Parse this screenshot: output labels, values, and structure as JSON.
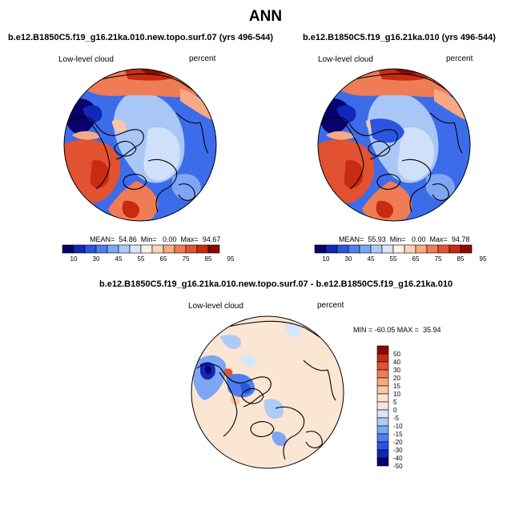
{
  "figure": {
    "title": "ANN"
  },
  "panels": [
    {
      "case_title": "b.e12.B1850C5.f19_g16.21ka.010.new.topo.surf.07 (yrs 496-544)",
      "variable_label": "Low-level cloud",
      "units_label": "percent",
      "stats_text": "MEAN=  54.86  Min=   0.00  Max=  94.67",
      "colorbar_ticks": [
        "10",
        "30",
        "45",
        "55",
        "65",
        "75",
        "85",
        "95"
      ]
    },
    {
      "case_title": "b.e12.B1850C5.f19_g16.21ka.010 (yrs 496-544)",
      "variable_label": "Low-level cloud",
      "units_label": "percent",
      "stats_text": "MEAN=  55.93  Min=   0.00  Max=  94.78",
      "colorbar_ticks": [
        "10",
        "30",
        "45",
        "55",
        "65",
        "75",
        "85",
        "95"
      ]
    },
    {
      "case_title": "b.e12.B1850C5.f19_g16.21ka.010.new.topo.surf.07 - b.e12.B1850C5.f19_g16.21ka.010",
      "variable_label": "Low-level cloud",
      "units_label": "percent",
      "stats_text": "MIN = -60.05 MAX =  35.94",
      "colorbar_ticks": [
        "50",
        "40",
        "30",
        "20",
        "15",
        "10",
        "5",
        "0",
        "-5",
        "-10",
        "-15",
        "-20",
        "-30",
        "-40",
        "-50"
      ]
    }
  ],
  "colors": {
    "abs_scale": [
      "#08006e",
      "#1027b8",
      "#2a55e0",
      "#4c7ef0",
      "#7ea6f4",
      "#aecbf6",
      "#d9e6fa",
      "#fbf1e6",
      "#fbd2b8",
      "#f6a983",
      "#ef7c55",
      "#e25230",
      "#c92a12",
      "#8b0a00"
    ],
    "diff_scale": [
      "#8b0a00",
      "#c92a12",
      "#e25230",
      "#ef7c55",
      "#f6a983",
      "#f9c6a6",
      "#fde2cf",
      "#fbe6d4",
      "#d6e6fb",
      "#aecbf6",
      "#7ea6f4",
      "#4c7ef0",
      "#2a55e0",
      "#1027b8",
      "#08006e"
    ]
  },
  "chart_data": [
    {
      "type": "heatmap",
      "projection": "north-polar-stereographic",
      "title": "b.e12.B1850C5.f19_g16.21ka.010.new.topo.surf.07 (yrs 496-544)",
      "variable": "Low-level cloud",
      "units": "percent",
      "mean": 54.86,
      "min": 0.0,
      "max": 94.67,
      "colorbar_levels": [
        10,
        30,
        45,
        55,
        65,
        75,
        85,
        95
      ]
    },
    {
      "type": "heatmap",
      "projection": "north-polar-stereographic",
      "title": "b.e12.B1850C5.f19_g16.21ka.010 (yrs 496-544)",
      "variable": "Low-level cloud",
      "units": "percent",
      "mean": 55.93,
      "min": 0.0,
      "max": 94.78,
      "colorbar_levels": [
        10,
        30,
        45,
        55,
        65,
        75,
        85,
        95
      ]
    },
    {
      "type": "heatmap",
      "projection": "north-polar-stereographic",
      "title": "b.e12.B1850C5.f19_g16.21ka.010.new.topo.surf.07 - b.e12.B1850C5.f19_g16.21ka.010",
      "variable": "Low-level cloud",
      "units": "percent",
      "min": -60.05,
      "max": 35.94,
      "colorbar_levels": [
        50,
        40,
        30,
        20,
        15,
        10,
        5,
        0,
        -5,
        -10,
        -15,
        -20,
        -30,
        -40,
        -50
      ]
    }
  ]
}
